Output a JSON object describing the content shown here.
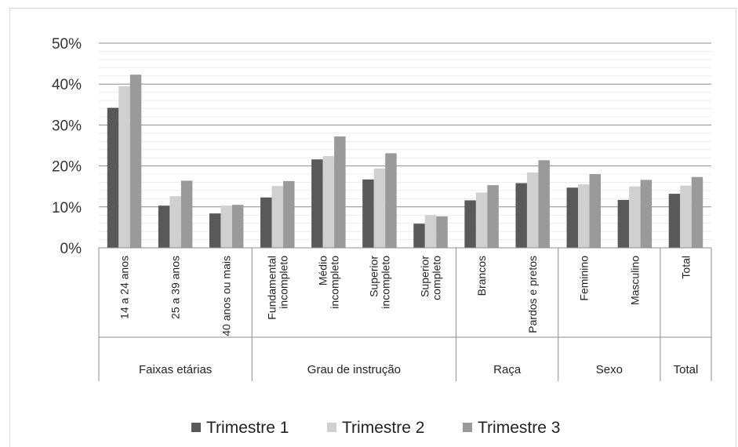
{
  "chart_data": {
    "type": "bar",
    "title": "",
    "xlabel": "",
    "ylabel": "",
    "ylim": [
      0,
      50
    ],
    "y_ticks": [
      "0%",
      "10%",
      "20%",
      "30%",
      "40%",
      "50%"
    ],
    "grid": true,
    "legend_position": "bottom",
    "categories": [
      [
        "14 a 24 anos"
      ],
      [
        "25 a 39 anos"
      ],
      [
        "40 anos ou mais"
      ],
      [
        "Fundamental",
        "incompleto"
      ],
      [
        "Médio",
        "incompleto"
      ],
      [
        "Superior",
        "incompleto"
      ],
      [
        "Superior",
        "completo"
      ],
      [
        "Brancos"
      ],
      [
        "Pardos e pretos"
      ],
      [
        "Feminino"
      ],
      [
        "Masculino"
      ],
      [
        "Total"
      ]
    ],
    "groups": [
      {
        "label": "Faixas etárias",
        "count": 3
      },
      {
        "label": "Grau de instrução",
        "count": 4
      },
      {
        "label": "Raça",
        "count": 2
      },
      {
        "label": "Sexo",
        "count": 2
      },
      {
        "label": "Total",
        "count": 1
      }
    ],
    "series": [
      {
        "name": "Trimestre 1",
        "color": "#595959",
        "values": [
          34.2,
          10.3,
          8.4,
          12.3,
          21.6,
          16.7,
          5.9,
          11.6,
          15.8,
          14.7,
          11.7,
          13.2
        ]
      },
      {
        "name": "Trimestre 2",
        "color": "#d0d0d0",
        "values": [
          39.5,
          12.6,
          10.3,
          15.1,
          22.4,
          19.4,
          8.0,
          13.5,
          18.4,
          15.5,
          15.0,
          15.2
        ]
      },
      {
        "name": "Trimestre 3",
        "color": "#9a9a9a",
        "values": [
          42.3,
          16.4,
          10.5,
          16.3,
          27.2,
          23.1,
          7.7,
          15.3,
          21.4,
          18.0,
          16.6,
          17.3
        ]
      }
    ]
  }
}
